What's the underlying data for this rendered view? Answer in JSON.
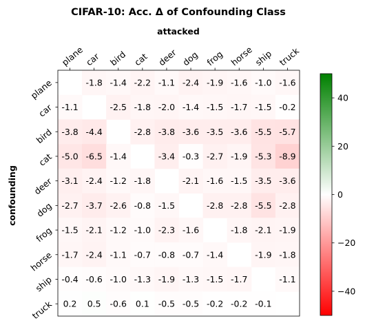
{
  "chart_data": {
    "type": "heatmap",
    "title": "CIFAR-10: Acc. Δ of Confounding Class",
    "xlabel": "attacked",
    "ylabel": "confounding",
    "x_categories": [
      "plane",
      "car",
      "bird",
      "cat",
      "deer",
      "dog",
      "frog",
      "horse",
      "ship",
      "truck"
    ],
    "y_categories": [
      "plane",
      "car",
      "bird",
      "cat",
      "deer",
      "dog",
      "frog",
      "horse",
      "ship",
      "truck"
    ],
    "values": [
      [
        null,
        -1.8,
        -1.4,
        -2.2,
        -1.1,
        -2.4,
        -1.9,
        -1.6,
        -1.0,
        -1.6
      ],
      [
        -1.1,
        null,
        -2.5,
        -1.8,
        -2.0,
        -1.4,
        -1.5,
        -1.7,
        -1.5,
        -0.2
      ],
      [
        -3.8,
        -4.4,
        null,
        -2.8,
        -3.8,
        -3.6,
        -3.5,
        -3.6,
        -5.5,
        -5.7
      ],
      [
        -5.0,
        -6.5,
        -1.4,
        null,
        -3.4,
        -0.3,
        -2.7,
        -1.9,
        -5.3,
        -8.9
      ],
      [
        -3.1,
        -2.4,
        -1.2,
        -1.8,
        null,
        -2.1,
        -1.6,
        -1.5,
        -3.5,
        -3.6
      ],
      [
        -2.7,
        -3.7,
        -2.6,
        -0.8,
        -1.5,
        null,
        -2.8,
        -2.8,
        -5.5,
        -2.8
      ],
      [
        -1.5,
        -2.1,
        -1.2,
        -1.0,
        -2.3,
        -1.6,
        null,
        -1.8,
        -2.1,
        -1.9
      ],
      [
        -1.7,
        -2.4,
        -1.1,
        -0.7,
        -0.8,
        -0.7,
        -1.4,
        null,
        -1.9,
        -1.8
      ],
      [
        -0.4,
        -0.6,
        -1.0,
        -1.3,
        -1.9,
        -1.3,
        -1.5,
        -1.7,
        null,
        -1.1
      ],
      [
        0.2,
        0.5,
        -0.6,
        0.1,
        -0.5,
        -0.5,
        -0.2,
        -0.2,
        -0.1,
        null
      ]
    ],
    "colorscale": {
      "min": -50,
      "max": 50,
      "low_color": "#ff0000",
      "mid_color": "#ffffff",
      "high_color": "#008000"
    },
    "colorbar_ticks": [
      40,
      20,
      0,
      -20,
      -40
    ],
    "colorbar_tick_labels": [
      "40",
      "20",
      "0",
      "−20",
      "−40"
    ],
    "x_tick_position": "top",
    "grid": false
  }
}
